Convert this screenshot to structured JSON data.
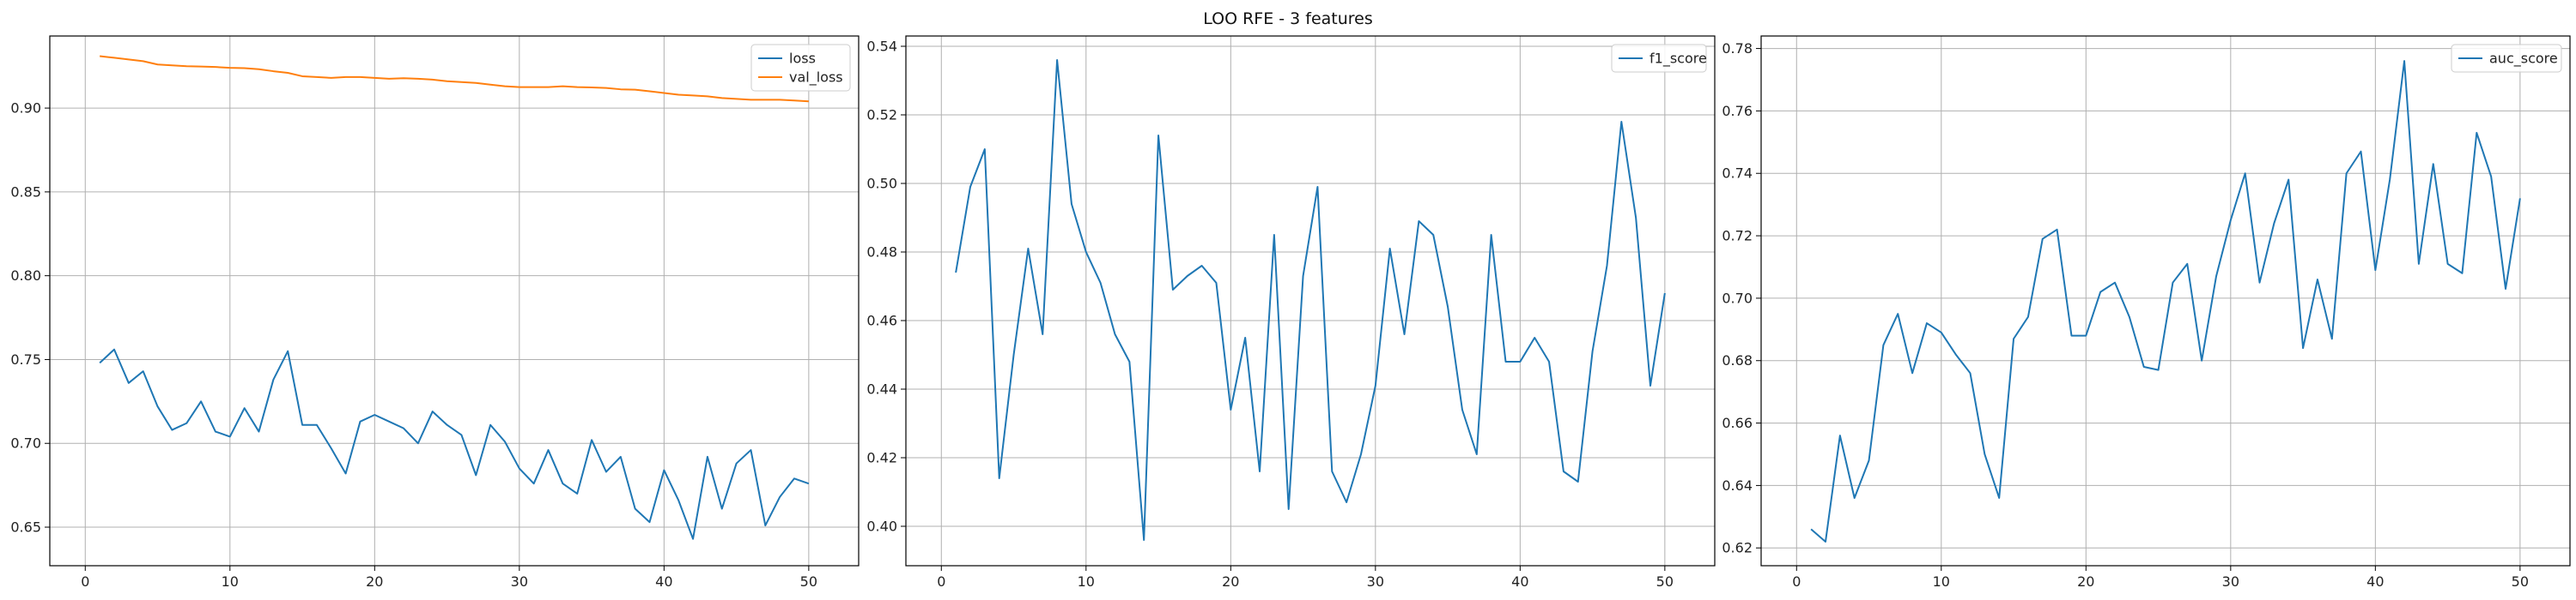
{
  "figure": {
    "title": "LOO RFE - 3 features"
  },
  "chart_data": [
    {
      "type": "line",
      "title": "",
      "xlabel": "",
      "ylabel": "",
      "xlim": [
        -2.45,
        53.45
      ],
      "ylim": [
        0.627,
        0.943
      ],
      "xticks": [
        0,
        10,
        20,
        30,
        40,
        50
      ],
      "yticks": [
        0.65,
        0.7,
        0.75,
        0.8,
        0.85,
        0.9
      ],
      "ytick_labels": [
        "0.65",
        "0.70",
        "0.75",
        "0.80",
        "0.85",
        "0.90"
      ],
      "grid": true,
      "legend": "top-right",
      "x": [
        1,
        2,
        3,
        4,
        5,
        6,
        7,
        8,
        9,
        10,
        11,
        12,
        13,
        14,
        15,
        16,
        17,
        18,
        19,
        20,
        21,
        22,
        23,
        24,
        25,
        26,
        27,
        28,
        29,
        30,
        31,
        32,
        33,
        34,
        35,
        36,
        37,
        38,
        39,
        40,
        41,
        42,
        43,
        44,
        45,
        46,
        47,
        48,
        49,
        50
      ],
      "series": [
        {
          "name": "loss",
          "color": "#1f77b4",
          "values": [
            0.748,
            0.756,
            0.736,
            0.743,
            0.722,
            0.708,
            0.712,
            0.725,
            0.707,
            0.704,
            0.721,
            0.707,
            0.738,
            0.755,
            0.711,
            0.711,
            0.697,
            0.682,
            0.713,
            0.717,
            0.713,
            0.709,
            0.7,
            0.719,
            0.711,
            0.705,
            0.681,
            0.711,
            0.701,
            0.685,
            0.676,
            0.696,
            0.676,
            0.67,
            0.702,
            0.683,
            0.692,
            0.661,
            0.653,
            0.684,
            0.666,
            0.643,
            0.692,
            0.661,
            0.688,
            0.696,
            0.651,
            0.668,
            0.679,
            0.676
          ]
        },
        {
          "name": "val_loss",
          "color": "#ff7f0e",
          "values": [
            0.931,
            0.93,
            0.929,
            0.928,
            0.926,
            0.9255,
            0.925,
            0.9248,
            0.9245,
            0.924,
            0.9238,
            0.9232,
            0.922,
            0.921,
            0.919,
            0.9185,
            0.918,
            0.9185,
            0.9185,
            0.918,
            0.9175,
            0.9178,
            0.9175,
            0.917,
            0.916,
            0.9155,
            0.915,
            0.914,
            0.913,
            0.9125,
            0.9125,
            0.9125,
            0.913,
            0.9125,
            0.9123,
            0.912,
            0.9112,
            0.911,
            0.91,
            0.909,
            0.908,
            0.9075,
            0.907,
            0.906,
            0.9055,
            0.905,
            0.905,
            0.905,
            0.9045,
            0.904
          ]
        }
      ]
    },
    {
      "type": "line",
      "title": "",
      "xlabel": "",
      "ylabel": "",
      "xlim": [
        -2.45,
        53.45
      ],
      "ylim": [
        0.3885,
        0.543
      ],
      "xticks": [
        0,
        10,
        20,
        30,
        40,
        50
      ],
      "yticks": [
        0.4,
        0.42,
        0.44,
        0.46,
        0.48,
        0.5,
        0.52,
        0.54
      ],
      "ytick_labels": [
        "0.40",
        "0.42",
        "0.44",
        "0.46",
        "0.48",
        "0.50",
        "0.52",
        "0.54"
      ],
      "grid": true,
      "legend": "top-right",
      "x": [
        1,
        2,
        3,
        4,
        5,
        6,
        7,
        8,
        9,
        10,
        11,
        12,
        13,
        14,
        15,
        16,
        17,
        18,
        19,
        20,
        21,
        22,
        23,
        24,
        25,
        26,
        27,
        28,
        29,
        30,
        31,
        32,
        33,
        34,
        35,
        36,
        37,
        38,
        39,
        40,
        41,
        42,
        43,
        44,
        45,
        46,
        47,
        48,
        49,
        50
      ],
      "series": [
        {
          "name": "f1_score",
          "color": "#1f77b4",
          "values": [
            0.474,
            0.499,
            0.51,
            0.414,
            0.45,
            0.481,
            0.456,
            0.536,
            0.494,
            0.48,
            0.471,
            0.456,
            0.448,
            0.396,
            0.514,
            0.469,
            0.473,
            0.476,
            0.471,
            0.434,
            0.455,
            0.416,
            0.485,
            0.405,
            0.473,
            0.499,
            0.416,
            0.407,
            0.421,
            0.441,
            0.481,
            0.456,
            0.489,
            0.485,
            0.464,
            0.434,
            0.421,
            0.485,
            0.448,
            0.448,
            0.455,
            0.448,
            0.416,
            0.413,
            0.451,
            0.476,
            0.518,
            0.49,
            0.441,
            0.468
          ]
        }
      ]
    },
    {
      "type": "line",
      "title": "",
      "xlabel": "",
      "ylabel": "",
      "xlim": [
        -2.45,
        53.45
      ],
      "ylim": [
        0.6143,
        0.784
      ],
      "xticks": [
        0,
        10,
        20,
        30,
        40,
        50
      ],
      "yticks": [
        0.62,
        0.64,
        0.66,
        0.68,
        0.7,
        0.72,
        0.74,
        0.76,
        0.78
      ],
      "ytick_labels": [
        "0.62",
        "0.64",
        "0.66",
        "0.68",
        "0.70",
        "0.72",
        "0.74",
        "0.76",
        "0.78"
      ],
      "grid": true,
      "legend": "top-right",
      "x": [
        1,
        2,
        3,
        4,
        5,
        6,
        7,
        8,
        9,
        10,
        11,
        12,
        13,
        14,
        15,
        16,
        17,
        18,
        19,
        20,
        21,
        22,
        23,
        24,
        25,
        26,
        27,
        28,
        29,
        30,
        31,
        32,
        33,
        34,
        35,
        36,
        37,
        38,
        39,
        40,
        41,
        42,
        43,
        44,
        45,
        46,
        47,
        48,
        49,
        50
      ],
      "series": [
        {
          "name": "auc_score",
          "color": "#1f77b4",
          "values": [
            0.626,
            0.622,
            0.656,
            0.636,
            0.648,
            0.685,
            0.695,
            0.676,
            0.692,
            0.689,
            0.682,
            0.676,
            0.65,
            0.636,
            0.687,
            0.694,
            0.719,
            0.722,
            0.688,
            0.688,
            0.702,
            0.705,
            0.694,
            0.678,
            0.677,
            0.705,
            0.711,
            0.68,
            0.707,
            0.725,
            0.74,
            0.705,
            0.724,
            0.738,
            0.684,
            0.706,
            0.687,
            0.74,
            0.747,
            0.709,
            0.738,
            0.776,
            0.711,
            0.743,
            0.711,
            0.708,
            0.753,
            0.739,
            0.703,
            0.732
          ]
        }
      ]
    }
  ]
}
